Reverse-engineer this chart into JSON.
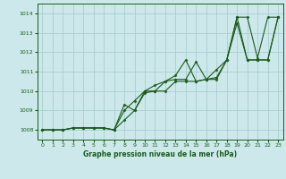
{
  "title": "Graphe pression niveau de la mer (hPa)",
  "bg_color": "#cce8ea",
  "grid_color": "#aacdd0",
  "line_color": "#1a5c1a",
  "marker_color": "#1a5c1a",
  "xlim": [
    -0.5,
    23.5
  ],
  "ylim": [
    1007.5,
    1014.5
  ],
  "xticks": [
    0,
    1,
    2,
    3,
    4,
    5,
    6,
    7,
    8,
    9,
    10,
    11,
    12,
    13,
    14,
    15,
    16,
    17,
    18,
    19,
    20,
    21,
    22,
    23
  ],
  "yticks": [
    1008,
    1009,
    1010,
    1011,
    1012,
    1013,
    1014
  ],
  "series": [
    [
      1008.0,
      1008.0,
      1008.0,
      1008.1,
      1008.1,
      1008.1,
      1008.1,
      1008.0,
      1009.0,
      1009.5,
      1010.0,
      1010.3,
      1010.5,
      1010.8,
      1011.6,
      1010.5,
      1010.6,
      1010.7,
      1011.6,
      1013.8,
      1013.8,
      1011.7,
      1013.8,
      1013.8
    ],
    [
      1008.0,
      1008.0,
      1008.0,
      1008.1,
      1008.1,
      1008.1,
      1008.1,
      1008.0,
      1009.3,
      1009.0,
      1009.9,
      1010.0,
      1010.5,
      1010.6,
      1010.6,
      1011.5,
      1010.6,
      1011.1,
      1011.6,
      1013.8,
      1011.6,
      1011.6,
      1011.6,
      1013.8
    ],
    [
      1008.0,
      1008.0,
      1008.0,
      1008.1,
      1008.1,
      1008.1,
      1008.1,
      1008.0,
      1008.5,
      1009.0,
      1010.0,
      1010.0,
      1010.0,
      1010.5,
      1010.5,
      1010.5,
      1010.6,
      1010.6,
      1011.6,
      1013.5,
      1011.6,
      1011.6,
      1011.6,
      1013.8
    ]
  ]
}
